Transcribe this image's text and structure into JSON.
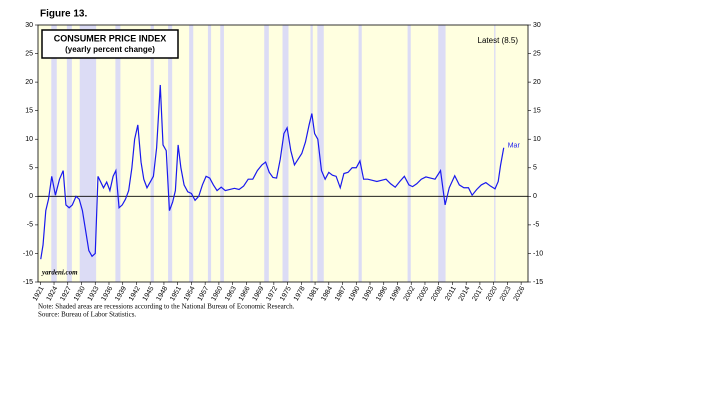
{
  "chart_data": {
    "type": "line",
    "figure_label": "Figure 13.",
    "title": "CONSUMER PRICE INDEX",
    "subtitle": "(yearly percent change)",
    "annotation": "Latest (8.5)",
    "end_label": "Mar",
    "watermark": "yardeni.com",
    "note": "Note: Shaded areas are recessions according to the National Bureau of Economic Research.",
    "source": "Source: Bureau of Labor Statistics.",
    "x": [
      1921.1,
      1921.6,
      1922.2,
      1922.8,
      1923.5,
      1924.3,
      1925.2,
      1926.0,
      1926.6,
      1927.3,
      1928.0,
      1928.8,
      1929.5,
      1930.2,
      1930.9,
      1931.6,
      1932.3,
      1933.0,
      1933.6,
      1934.2,
      1934.8,
      1935.5,
      1936.2,
      1936.9,
      1937.5,
      1938.2,
      1938.9,
      1939.6,
      1940.3,
      1941.0,
      1941.6,
      1942.3,
      1943.0,
      1943.6,
      1944.3,
      1945.0,
      1945.7,
      1946.4,
      1947.2,
      1947.8,
      1948.5,
      1949.2,
      1949.9,
      1950.5,
      1951.1,
      1951.7,
      1952.4,
      1953.2,
      1954.0,
      1954.8,
      1955.6,
      1956.4,
      1957.2,
      1958.0,
      1958.8,
      1959.6,
      1960.5,
      1961.4,
      1962.4,
      1963.4,
      1964.4,
      1965.4,
      1966.4,
      1967.4,
      1968.4,
      1969.4,
      1970.2,
      1971.0,
      1971.8,
      1972.6,
      1973.4,
      1974.2,
      1974.9,
      1975.7,
      1976.5,
      1977.3,
      1978.1,
      1978.9,
      1979.7,
      1980.3,
      1980.9,
      1981.6,
      1982.4,
      1983.2,
      1984.0,
      1984.8,
      1985.6,
      1986.5,
      1987.3,
      1988.2,
      1989.1,
      1990.0,
      1990.8,
      1991.6,
      1992.5,
      1993.5,
      1994.5,
      1995.5,
      1996.5,
      1997.5,
      1998.5,
      1999.5,
      2000.5,
      2001.5,
      2002.3,
      2003.2,
      2004.2,
      2005.2,
      2006.2,
      2007.2,
      2008.4,
      2009.4,
      2010.3,
      2011.5,
      2012.5,
      2013.5,
      2014.5,
      2015.3,
      2016.3,
      2017.3,
      2018.3,
      2019.3,
      2020.3,
      2021.0,
      2021.5,
      2022.2
    ],
    "series": [
      {
        "name": "CPI",
        "color": "#1a1aee",
        "values": [
          -11,
          -8.5,
          -2.5,
          -0.5,
          3.5,
          0.2,
          3,
          4.5,
          -1.5,
          -2,
          -1.5,
          0,
          -0.5,
          -2.5,
          -6,
          -9.5,
          -10.5,
          -10,
          3.5,
          2.5,
          1.5,
          2.5,
          1,
          3.5,
          4.5,
          -2,
          -1.5,
          -0.5,
          1,
          5,
          10,
          12.5,
          6,
          3,
          1.5,
          2.5,
          3.5,
          8.5,
          19.5,
          9,
          8,
          -2.5,
          -1,
          1,
          9,
          5,
          2,
          0.8,
          0.5,
          -0.7,
          0,
          2,
          3.5,
          3.2,
          2,
          1,
          1.6,
          1,
          1.2,
          1.4,
          1.2,
          1.8,
          3,
          3,
          4.5,
          5.5,
          6,
          4.2,
          3.3,
          3.2,
          6.5,
          11,
          12,
          8,
          5.5,
          6.5,
          7.5,
          9.5,
          12.5,
          14.5,
          11,
          10,
          4.5,
          3,
          4.2,
          3.7,
          3.5,
          1.5,
          4,
          4.2,
          5,
          5,
          6.2,
          3,
          3,
          2.8,
          2.6,
          2.8,
          3,
          2.2,
          1.6,
          2.6,
          3.5,
          2,
          1.7,
          2.2,
          3,
          3.4,
          3.2,
          3,
          4.5,
          -1.5,
          1.5,
          3.6,
          2,
          1.5,
          1.5,
          0.2,
          1.2,
          2,
          2.4,
          1.8,
          1.3,
          2.6,
          5.4,
          8.5
        ]
      }
    ],
    "recessions": [
      [
        1923.4,
        1924.6
      ],
      [
        1926.8,
        1927.9
      ],
      [
        1929.6,
        1933.2
      ],
      [
        1937.4,
        1938.5
      ],
      [
        1945.1,
        1945.8
      ],
      [
        1948.9,
        1949.8
      ],
      [
        1953.5,
        1954.4
      ],
      [
        1957.6,
        1958.3
      ],
      [
        1960.3,
        1961.1
      ],
      [
        1969.9,
        1970.9
      ],
      [
        1973.9,
        1975.2
      ],
      [
        1980.0,
        1980.5
      ],
      [
        1981.5,
        1982.9
      ],
      [
        1990.5,
        1991.2
      ],
      [
        2001.2,
        2001.9
      ],
      [
        2007.9,
        2009.5
      ],
      [
        2020.1,
        2020.4
      ]
    ],
    "xlim": [
      1920.5,
      2027.5
    ],
    "xticks": [
      1921,
      1924,
      1927,
      1930,
      1933,
      1936,
      1939,
      1942,
      1945,
      1948,
      1951,
      1954,
      1957,
      1960,
      1963,
      1966,
      1969,
      1972,
      1975,
      1978,
      1981,
      1984,
      1987,
      1990,
      1993,
      1996,
      1999,
      2002,
      2005,
      2008,
      2011,
      2014,
      2017,
      2020,
      2023,
      2026
    ],
    "ylim": [
      -15,
      30
    ],
    "yticks": [
      -15,
      -10,
      -5,
      0,
      5,
      10,
      15,
      20,
      25,
      30
    ]
  }
}
